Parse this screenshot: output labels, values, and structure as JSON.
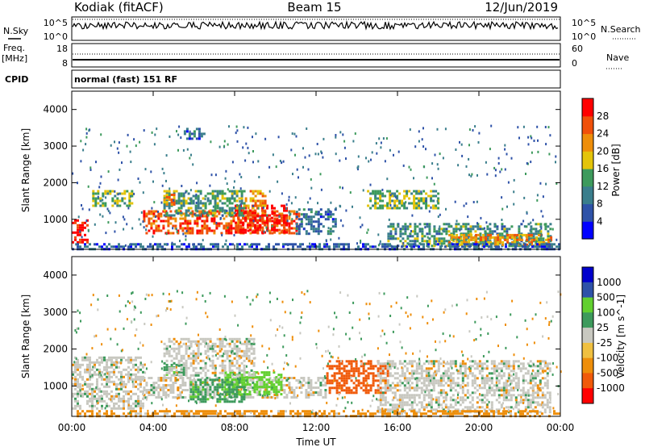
{
  "header": {
    "station": "Kodiak (fitACF)",
    "beam": "Beam 15",
    "date": "12/Jun/2019"
  },
  "strips": {
    "nsky_label": "N.Sky",
    "nsky_ticks": [
      "10^5",
      "10^0"
    ],
    "nsearch_label": "N.Search",
    "nsearch_ticks": [
      "10^5",
      "10^0"
    ],
    "freq_label": "Freq.",
    "freq_unit": "[MHz]",
    "freq_ticks": [
      "18",
      "8"
    ],
    "nave_label": "Nave",
    "nave_ticks": [
      "60",
      "0"
    ],
    "cpid_label": "CPID",
    "cpid_value": "normal (fast) 151 RF"
  },
  "colors": {
    "power": [
      "#0000ff",
      "#2e52a8",
      "#3a7e8c",
      "#3d9a5c",
      "#e4c40a",
      "#ee8e0a",
      "#f0500a",
      "#ff0000"
    ],
    "velocity": [
      "#ff0000",
      "#f05a0a",
      "#ee8e0a",
      "#f0c040",
      "#c8c8c0",
      "#3d9a5c",
      "#62d030",
      "#2e52a8",
      "#0000cc"
    ]
  },
  "chart_data": [
    {
      "type": "heatmap",
      "name": "power",
      "ylabel": "Slant Range [km]",
      "xlabel": "Time UT",
      "xlim": [
        0,
        24
      ],
      "ylim": [
        180,
        4500
      ],
      "xticks": [
        "00:00",
        "04:00",
        "08:00",
        "12:00",
        "16:00",
        "20:00",
        "00:00"
      ],
      "yticks": [
        1000,
        2000,
        3000,
        4000
      ],
      "colorbar": {
        "label": "Power [dB]",
        "ticks": [
          "4",
          "8",
          "12",
          "16",
          "20",
          "24",
          "28"
        ],
        "range": [
          0,
          32
        ]
      },
      "features": [
        {
          "t": [
            0.0,
            0.8
          ],
          "r": [
            400,
            1000
          ],
          "level": 29
        },
        {
          "t": [
            3.5,
            11.2
          ],
          "r": [
            650,
            1250
          ],
          "level": 26
        },
        {
          "t": [
            8.0,
            10.5
          ],
          "r": [
            650,
            1400
          ],
          "level": 30
        },
        {
          "t": [
            4.5,
            8.5
          ],
          "r": [
            1100,
            1800
          ],
          "level": 13
        },
        {
          "t": [
            8.5,
            9.5
          ],
          "r": [
            1300,
            1800
          ],
          "level": 21
        },
        {
          "t": [
            1.0,
            3.0
          ],
          "r": [
            1400,
            1800
          ],
          "level": 15
        },
        {
          "t": [
            4.5,
            5.2
          ],
          "r": [
            1400,
            1700
          ],
          "level": 22
        },
        {
          "t": [
            5.5,
            6.5
          ],
          "r": [
            3200,
            3500
          ],
          "level": 8
        },
        {
          "t": [
            11.0,
            13.0
          ],
          "r": [
            600,
            1300
          ],
          "level": 8
        },
        {
          "t": [
            14.5,
            18.0
          ],
          "r": [
            1300,
            1800
          ],
          "level": 15
        },
        {
          "t": [
            15.5,
            23.5
          ],
          "r": [
            300,
            900
          ],
          "level": 12
        },
        {
          "t": [
            18.5,
            23.5
          ],
          "r": [
            300,
            600
          ],
          "level": 22
        },
        {
          "t": [
            0.0,
            24.0
          ],
          "r": [
            180,
            350
          ],
          "level": 7
        }
      ]
    },
    {
      "type": "heatmap",
      "name": "velocity",
      "ylabel": "Slant Range [km]",
      "xlabel": "Time UT",
      "xlim": [
        0,
        24
      ],
      "ylim": [
        180,
        4500
      ],
      "xticks": [
        "00:00",
        "04:00",
        "08:00",
        "12:00",
        "16:00",
        "20:00",
        "00:00"
      ],
      "yticks": [
        1000,
        2000,
        3000,
        4000
      ],
      "colorbar": {
        "label": "Velocity [m s^-1]",
        "ticks": [
          "1000",
          "500",
          "100",
          "25",
          "-25",
          "-100",
          "-500",
          "-1000"
        ],
        "range": [
          -1200,
          1200
        ]
      },
      "features": [
        {
          "t": [
            3.5,
            12.5
          ],
          "r": [
            700,
            1250
          ],
          "value": 0
        },
        {
          "t": [
            7.5,
            10.3
          ],
          "r": [
            800,
            1400
          ],
          "value": 250
        },
        {
          "t": [
            5.8,
            8.5
          ],
          "r": [
            600,
            1200
          ],
          "value": 80
        },
        {
          "t": [
            4.5,
            5.5
          ],
          "r": [
            1300,
            1600
          ],
          "value": 80
        },
        {
          "t": [
            4.5,
            9.0
          ],
          "r": [
            1300,
            2300
          ],
          "value": 0
        },
        {
          "t": [
            12.5,
            15.5
          ],
          "r": [
            800,
            1700
          ],
          "value": -150
        },
        {
          "t": [
            0.0,
            3.5
          ],
          "r": [
            400,
            1800
          ],
          "value": 0
        },
        {
          "t": [
            15.0,
            23.5
          ],
          "r": [
            300,
            1700
          ],
          "value": 0
        },
        {
          "t": [
            0.0,
            24.0
          ],
          "r": [
            180,
            350
          ],
          "value": -50
        }
      ]
    }
  ],
  "time_axis_label": "Time UT"
}
